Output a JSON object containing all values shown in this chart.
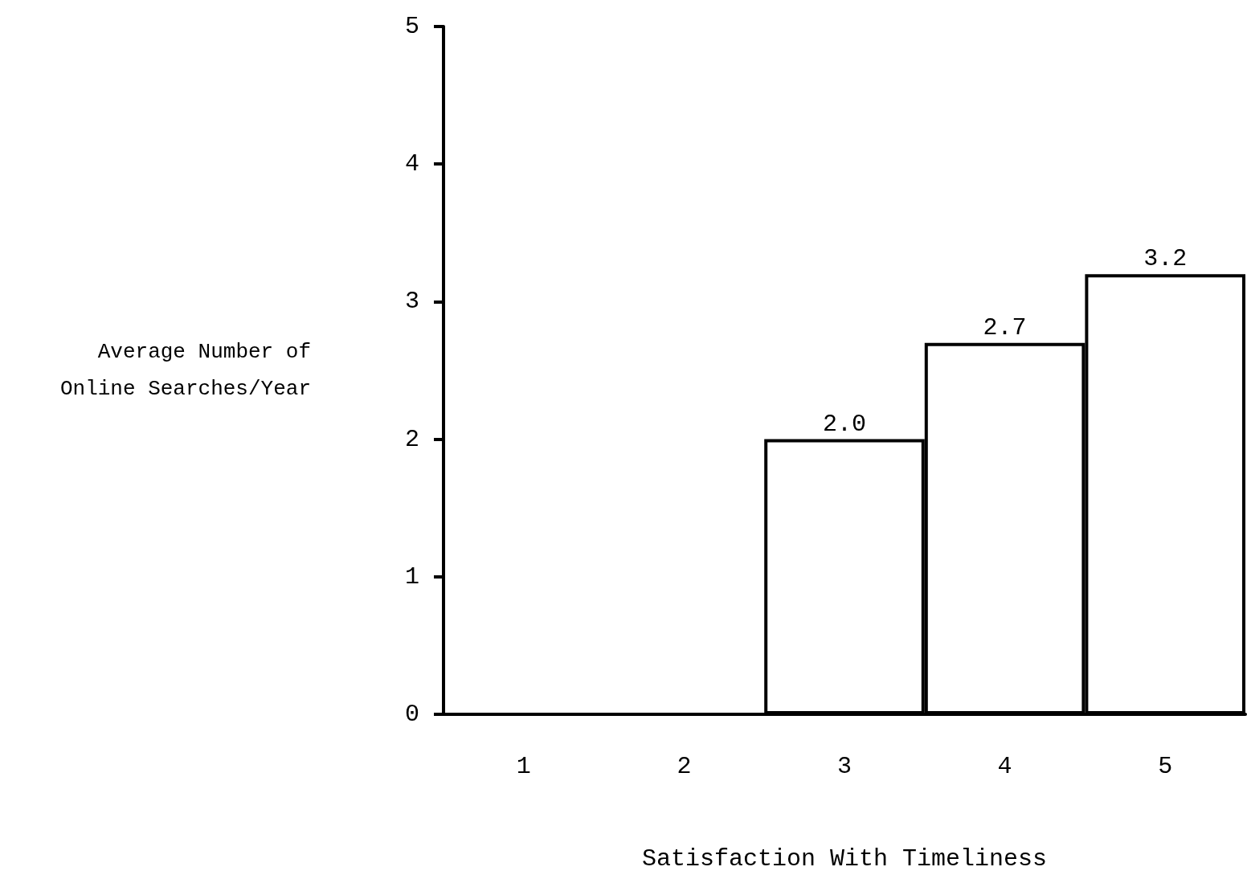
{
  "chart_data": {
    "type": "bar",
    "xlabel": "Satisfaction With Timeliness",
    "ylabel": "Average Number of\nOnline Searches/Year",
    "categories": [
      "1",
      "2",
      "3",
      "4",
      "5"
    ],
    "values": [
      null,
      null,
      2.0,
      2.7,
      3.2
    ],
    "value_labels": [
      null,
      null,
      "2.0",
      "2.7",
      "3.2"
    ],
    "color": "#ffffff",
    "ylim": [
      0,
      5
    ],
    "yticks": [
      0,
      1,
      2,
      3,
      4,
      5
    ],
    "grid": false
  }
}
